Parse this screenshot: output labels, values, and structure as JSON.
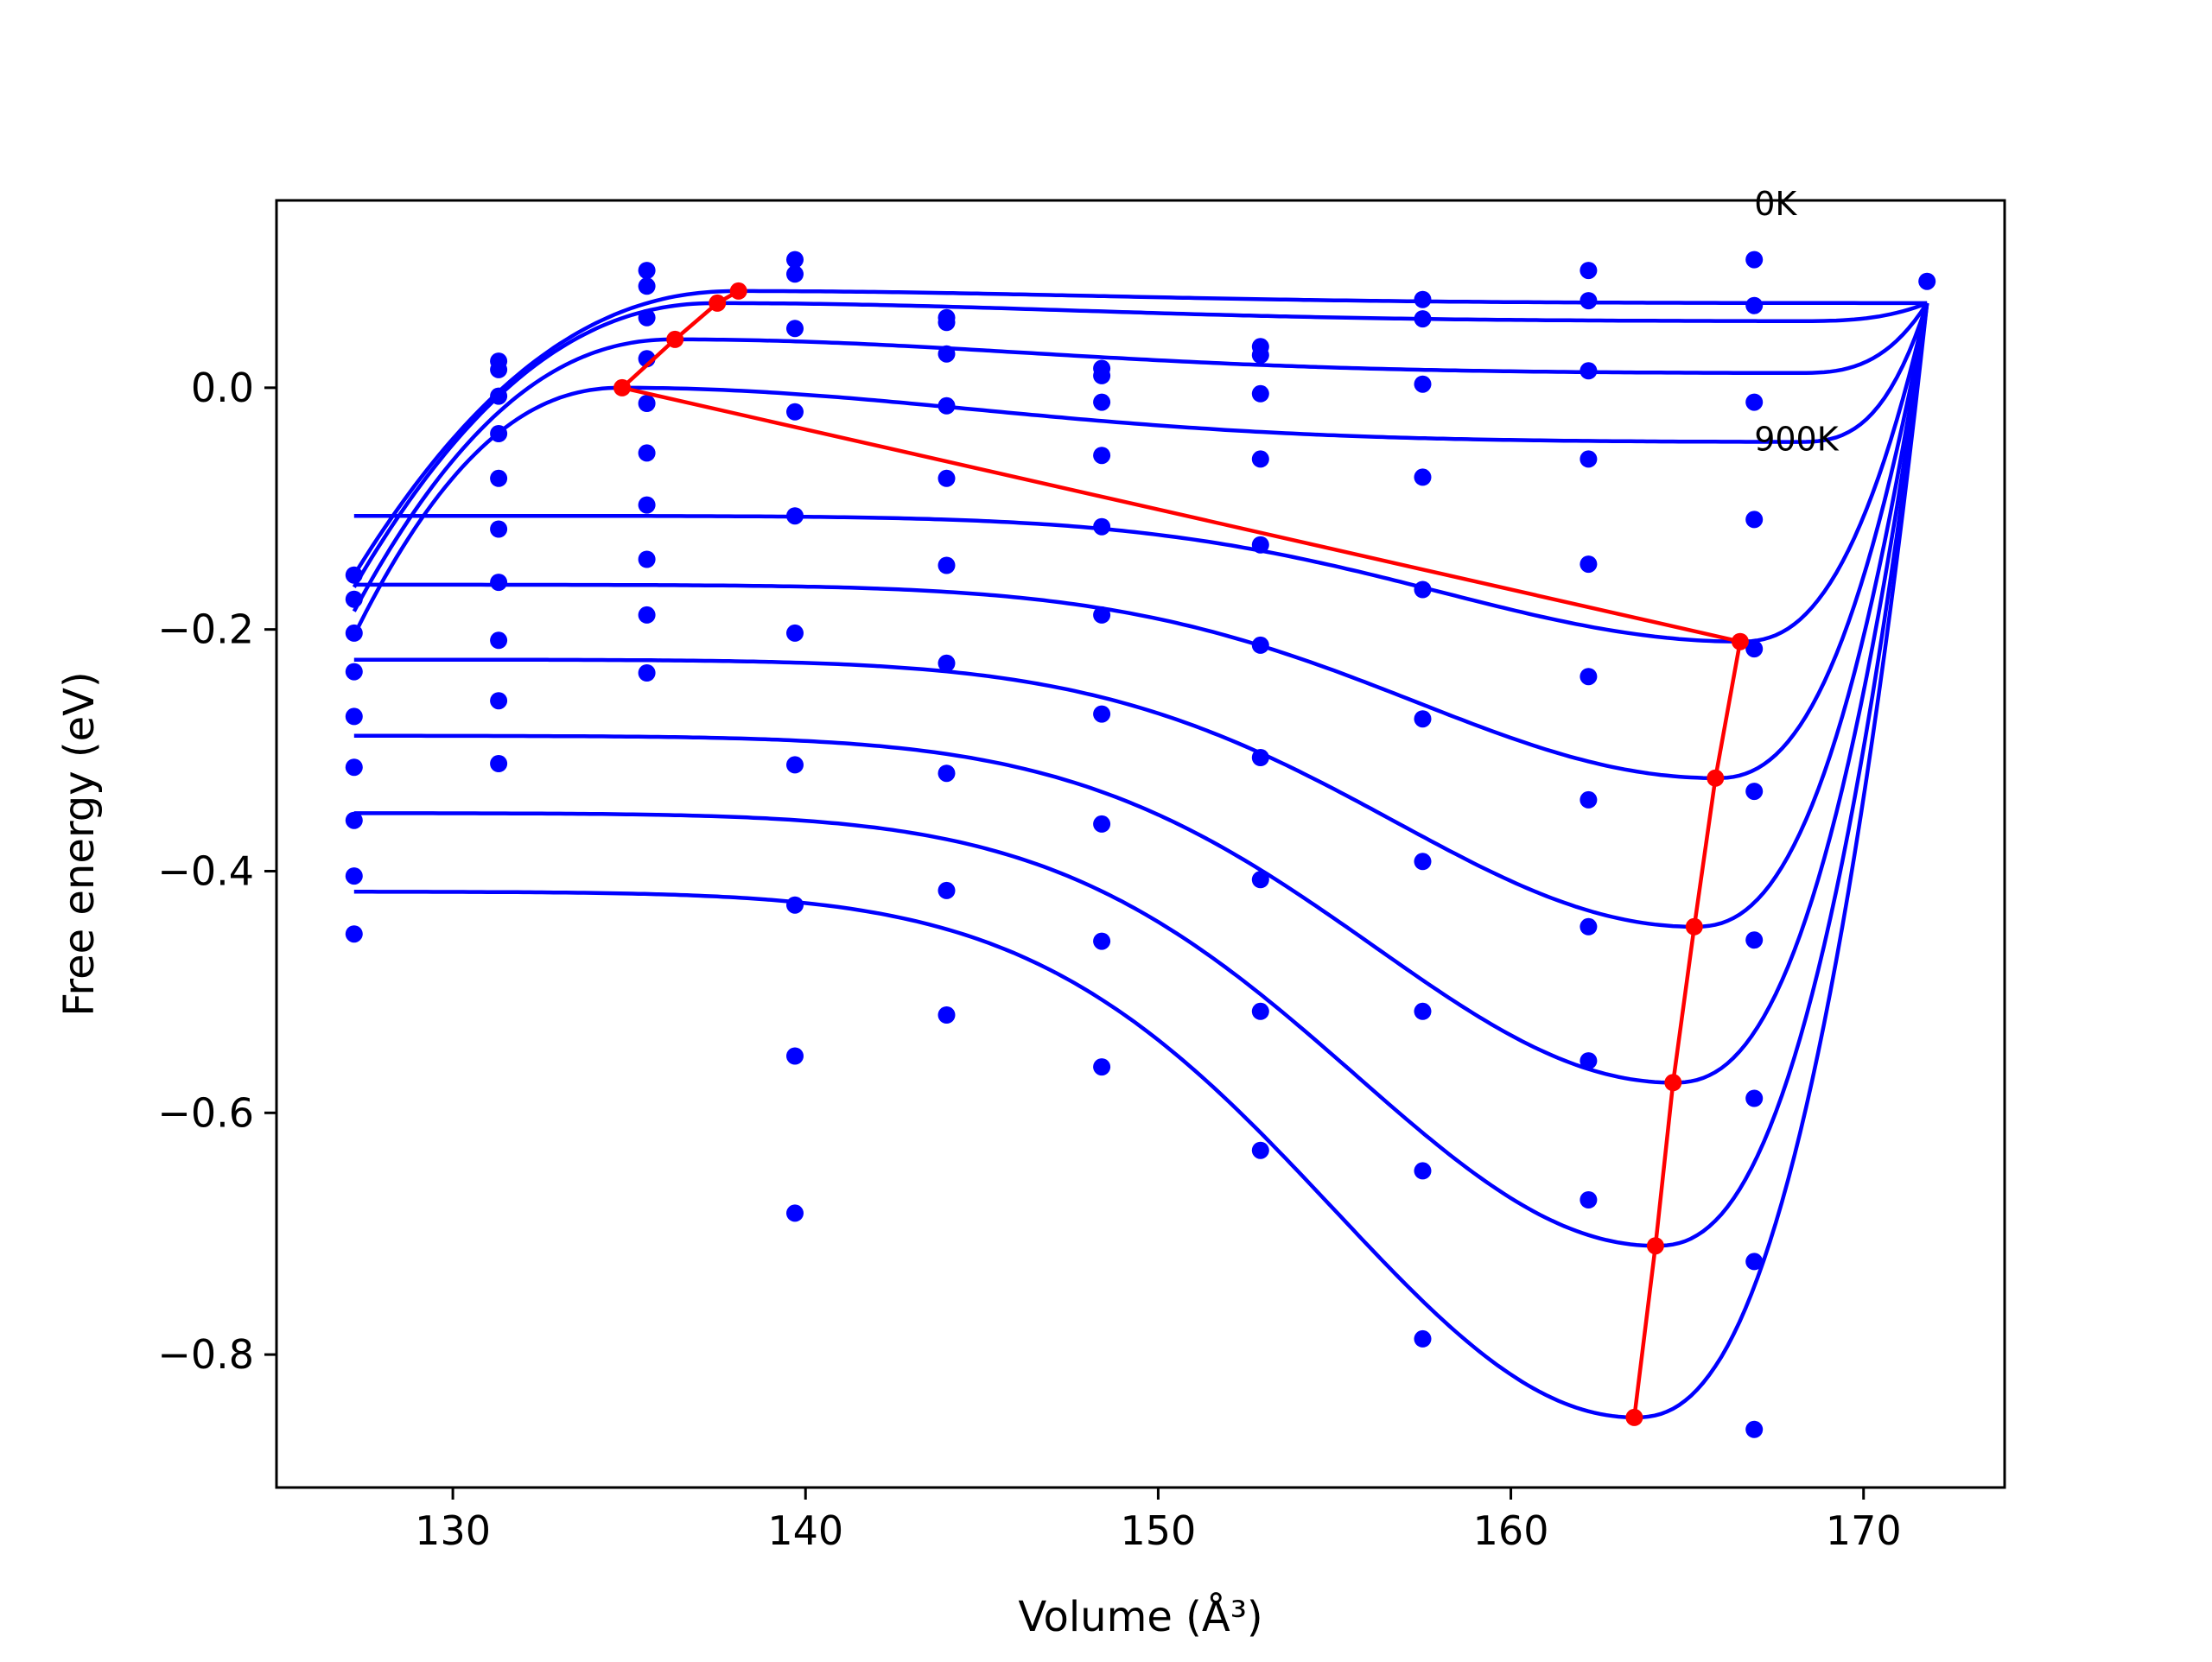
{
  "chart_data": {
    "type": "line",
    "title": "",
    "xlabel": "Volume (Å³)",
    "ylabel": "Free energy (eV)",
    "xlim": [
      125,
      174
    ],
    "ylim": [
      -0.91,
      0.155
    ],
    "x_ticks": [
      130,
      140,
      150,
      160,
      170
    ],
    "x_tick_labels": [
      "130",
      "140",
      "150",
      "160",
      "170"
    ],
    "y_ticks": [
      0.0,
      -0.2,
      -0.4,
      -0.6,
      -0.8
    ],
    "y_tick_labels": [
      "0.0",
      "−0.2",
      "−0.4",
      "−0.6",
      "−0.8"
    ],
    "grid": false,
    "legend": null,
    "colors": {
      "fit_curves": "#0000ff",
      "data_points": "#0000ff",
      "minima_path": "#ff0000"
    },
    "annotations": [
      {
        "text": "0K",
        "x": 166.9,
        "y": 0.143
      },
      {
        "text": "900K",
        "x": 166.9,
        "y": -0.052
      }
    ],
    "data_volumes": [
      127.2,
      131.3,
      135.5,
      139.7,
      144.0,
      148.4,
      152.9,
      157.5,
      162.2,
      166.9,
      171.8
    ],
    "data_points": [
      [
        127.2,
        -0.155
      ],
      [
        127.2,
        -0.175
      ],
      [
        127.2,
        -0.203
      ],
      [
        127.2,
        -0.235
      ],
      [
        127.2,
        -0.272
      ],
      [
        127.2,
        -0.314
      ],
      [
        127.2,
        -0.358
      ],
      [
        127.2,
        -0.404
      ],
      [
        127.2,
        -0.452
      ],
      [
        131.3,
        0.022
      ],
      [
        131.3,
        0.015
      ],
      [
        131.3,
        -0.007
      ],
      [
        131.3,
        -0.038
      ],
      [
        131.3,
        -0.075
      ],
      [
        131.3,
        -0.117
      ],
      [
        131.3,
        -0.161
      ],
      [
        131.3,
        -0.209
      ],
      [
        131.3,
        -0.259
      ],
      [
        131.3,
        -0.311
      ],
      [
        135.5,
        0.097
      ],
      [
        135.5,
        0.084
      ],
      [
        135.5,
        0.058
      ],
      [
        135.5,
        0.024
      ],
      [
        135.5,
        -0.013
      ],
      [
        135.5,
        -0.054
      ],
      [
        135.5,
        -0.097
      ],
      [
        135.5,
        -0.142
      ],
      [
        135.5,
        -0.188
      ],
      [
        135.5,
        -0.236
      ],
      [
        139.7,
        0.106
      ],
      [
        139.7,
        0.094
      ],
      [
        139.7,
        0.049
      ],
      [
        139.7,
        -0.02
      ],
      [
        139.7,
        -0.106
      ],
      [
        139.7,
        -0.203
      ],
      [
        139.7,
        -0.312
      ],
      [
        139.7,
        -0.428
      ],
      [
        139.7,
        -0.553
      ],
      [
        139.7,
        -0.683
      ],
      [
        144.0,
        0.058
      ],
      [
        144.0,
        0.054
      ],
      [
        144.0,
        0.028
      ],
      [
        144.0,
        -0.015
      ],
      [
        144.0,
        -0.075
      ],
      [
        144.0,
        -0.147
      ],
      [
        144.0,
        -0.228
      ],
      [
        144.0,
        -0.319
      ],
      [
        144.0,
        -0.416
      ],
      [
        144.0,
        -0.519
      ],
      [
        148.4,
        0.016
      ],
      [
        148.4,
        0.01
      ],
      [
        148.4,
        -0.012
      ],
      [
        148.4,
        -0.056
      ],
      [
        148.4,
        -0.115
      ],
      [
        148.4,
        -0.188
      ],
      [
        148.4,
        -0.27
      ],
      [
        148.4,
        -0.361
      ],
      [
        148.4,
        -0.458
      ],
      [
        148.4,
        -0.562
      ],
      [
        152.9,
        0.034
      ],
      [
        152.9,
        0.027
      ],
      [
        152.9,
        -0.005
      ],
      [
        152.9,
        -0.059
      ],
      [
        152.9,
        -0.13
      ],
      [
        152.9,
        -0.213
      ],
      [
        152.9,
        -0.306
      ],
      [
        152.9,
        -0.407
      ],
      [
        152.9,
        -0.516
      ],
      [
        152.9,
        -0.631
      ],
      [
        157.5,
        0.073
      ],
      [
        157.5,
        0.057
      ],
      [
        157.5,
        0.003
      ],
      [
        157.5,
        -0.074
      ],
      [
        157.5,
        -0.167
      ],
      [
        157.5,
        -0.274
      ],
      [
        157.5,
        -0.392
      ],
      [
        157.5,
        -0.516
      ],
      [
        157.5,
        -0.648
      ],
      [
        157.5,
        -0.787
      ],
      [
        162.2,
        0.097
      ],
      [
        162.2,
        0.072
      ],
      [
        162.2,
        0.014
      ],
      [
        162.2,
        -0.059
      ],
      [
        162.2,
        -0.146
      ],
      [
        162.2,
        -0.239
      ],
      [
        162.2,
        -0.341
      ],
      [
        162.2,
        -0.446
      ],
      [
        162.2,
        -0.557
      ],
      [
        162.2,
        -0.672
      ],
      [
        166.9,
        0.106
      ],
      [
        166.9,
        0.068
      ],
      [
        166.9,
        -0.012
      ],
      [
        166.9,
        -0.109
      ],
      [
        166.9,
        -0.216
      ],
      [
        166.9,
        -0.334
      ],
      [
        166.9,
        -0.457
      ],
      [
        166.9,
        -0.588
      ],
      [
        166.9,
        -0.723
      ],
      [
        166.9,
        -0.862
      ],
      [
        171.8,
        0.088
      ]
    ],
    "fit_curves": [
      {
        "v0": 138.1,
        "e0": 0.08,
        "e_inf": 0.07,
        "e_left": -0.155,
        "e_right": 0.07
      },
      {
        "v0": 137.5,
        "e0": 0.07,
        "e_inf": 0.055,
        "e_left": -0.165,
        "e_right": 0.07
      },
      {
        "v0": 136.3,
        "e0": 0.04,
        "e_inf": 0.012,
        "e_left": -0.185,
        "e_right": 0.07
      },
      {
        "v0": 134.8,
        "e0": 0.0,
        "e_inf": -0.045,
        "e_left": -0.205,
        "e_right": 0.07
      },
      {
        "v0": 166.5,
        "e0": -0.21,
        "e_inf": -0.106,
        "e_left": -0.106,
        "e_right": 0.07
      },
      {
        "v0": 165.8,
        "e0": -0.323,
        "e_inf": -0.163,
        "e_left": -0.163,
        "e_right": 0.07
      },
      {
        "v0": 165.2,
        "e0": -0.446,
        "e_inf": -0.225,
        "e_left": -0.225,
        "e_right": 0.07
      },
      {
        "v0": 164.6,
        "e0": -0.575,
        "e_inf": -0.288,
        "e_left": -0.288,
        "e_right": 0.07
      },
      {
        "v0": 164.1,
        "e0": -0.71,
        "e_inf": -0.352,
        "e_left": -0.352,
        "e_right": 0.07
      },
      {
        "v0": 163.5,
        "e0": -0.852,
        "e_inf": -0.417,
        "e_left": -0.417,
        "e_right": 0.07
      }
    ],
    "minima_path": [
      [
        138.1,
        0.08
      ],
      [
        137.5,
        0.07
      ],
      [
        136.3,
        0.04
      ],
      [
        134.8,
        0.0
      ],
      [
        166.5,
        -0.21
      ],
      [
        165.8,
        -0.323
      ],
      [
        165.2,
        -0.446
      ],
      [
        164.6,
        -0.575
      ],
      [
        164.1,
        -0.71
      ],
      [
        163.5,
        -0.852
      ]
    ]
  }
}
